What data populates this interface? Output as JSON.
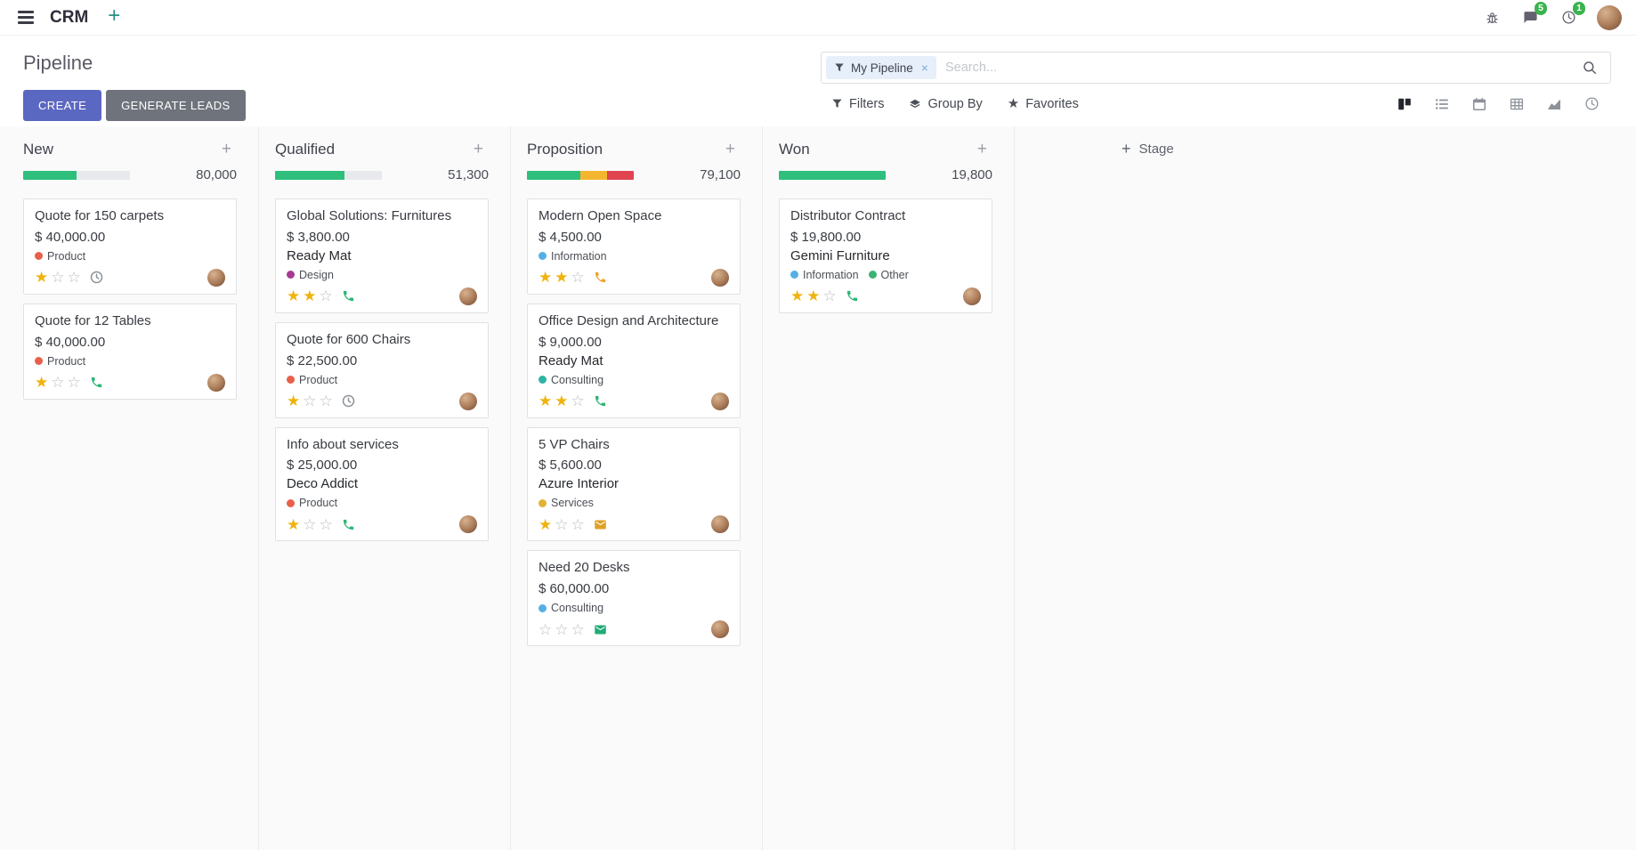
{
  "navbar": {
    "app_name": "CRM",
    "messages_badge": "5",
    "activities_badge": "1"
  },
  "control_panel": {
    "title": "Pipeline",
    "create_label": "CREATE",
    "generate_leads_label": "GENERATE LEADS",
    "search_facet": "My Pipeline",
    "search_placeholder": "Search...",
    "filters_label": "Filters",
    "group_by_label": "Group By",
    "favorites_label": "Favorites"
  },
  "kanban": {
    "add_stage_label": "Stage",
    "columns": [
      {
        "name": "New",
        "amount": "80,000",
        "progress": [
          {
            "color": "#2ebf7d",
            "pct": 50
          }
        ],
        "cards": [
          {
            "title": "Quote for 150 carpets",
            "revenue": "$ 40,000.00",
            "partner": "",
            "tags": [
              {
                "label": "Product",
                "color": "#e8604a"
              }
            ],
            "stars": 1,
            "activity": {
              "icon": "clock-icon",
              "color": "#8d9297"
            }
          },
          {
            "title": "Quote for 12 Tables",
            "revenue": "$ 40,000.00",
            "partner": "",
            "tags": [
              {
                "label": "Product",
                "color": "#e8604a"
              }
            ],
            "stars": 1,
            "activity": {
              "icon": "phone-icon",
              "color": "#2eb574"
            }
          }
        ]
      },
      {
        "name": "Qualified",
        "amount": "51,300",
        "progress": [
          {
            "color": "#2ebf7d",
            "pct": 65
          }
        ],
        "cards": [
          {
            "title": "Global Solutions: Furnitures",
            "revenue": "$ 3,800.00",
            "partner": "Ready Mat",
            "tags": [
              {
                "label": "Design",
                "color": "#a53a93"
              }
            ],
            "stars": 2,
            "activity": {
              "icon": "phone-icon",
              "color": "#2eb574"
            }
          },
          {
            "title": "Quote for 600 Chairs",
            "revenue": "$ 22,500.00",
            "partner": "",
            "tags": [
              {
                "label": "Product",
                "color": "#e8604a"
              }
            ],
            "stars": 1,
            "activity": {
              "icon": "clock-icon",
              "color": "#8d9297"
            }
          },
          {
            "title": "Info about services",
            "revenue": "$ 25,000.00",
            "partner": "Deco Addict",
            "tags": [
              {
                "label": "Product",
                "color": "#e8604a"
              }
            ],
            "stars": 1,
            "activity": {
              "icon": "phone-icon",
              "color": "#2eb574"
            }
          }
        ]
      },
      {
        "name": "Proposition",
        "amount": "79,100",
        "progress": [
          {
            "color": "#2ebf7d",
            "pct": 50
          },
          {
            "color": "#f5b62f",
            "pct": 25
          },
          {
            "color": "#e0444f",
            "pct": 25
          }
        ],
        "cards": [
          {
            "title": "Modern Open Space",
            "revenue": "$ 4,500.00",
            "partner": "",
            "tags": [
              {
                "label": "Information",
                "color": "#54b0e4"
              }
            ],
            "stars": 2,
            "activity": {
              "icon": "phone-icon",
              "color": "#f1a32f"
            }
          },
          {
            "title": "Office Design and Architecture",
            "revenue": "$ 9,000.00",
            "partner": "Ready Mat",
            "tags": [
              {
                "label": "Consulting",
                "color": "#2fb3a4"
              }
            ],
            "stars": 2,
            "activity": {
              "icon": "phone-icon",
              "color": "#2eb574"
            }
          },
          {
            "title": "5 VP Chairs",
            "revenue": "$ 5,600.00",
            "partner": "Azure Interior",
            "tags": [
              {
                "label": "Services",
                "color": "#e2b236"
              }
            ],
            "stars": 1,
            "activity": {
              "icon": "envelope-icon",
              "color": "#dfa226"
            }
          },
          {
            "title": "Need 20 Desks",
            "revenue": "$ 60,000.00",
            "partner": "",
            "tags": [
              {
                "label": "Consulting",
                "color": "#54b0e4"
              }
            ],
            "stars": 0,
            "activity": {
              "icon": "envelope-icon",
              "color": "#1fac77"
            }
          }
        ]
      },
      {
        "name": "Won",
        "amount": "19,800",
        "progress": [
          {
            "color": "#2ebf7d",
            "pct": 100
          }
        ],
        "cards": [
          {
            "title": "Distributor Contract",
            "revenue": "$ 19,800.00",
            "partner": "Gemini Furniture",
            "tags": [
              {
                "label": "Information",
                "color": "#54b0e4"
              },
              {
                "label": "Other",
                "color": "#3bb273"
              }
            ],
            "stars": 2,
            "activity": {
              "icon": "phone-icon",
              "color": "#2eb574"
            }
          }
        ]
      }
    ]
  }
}
